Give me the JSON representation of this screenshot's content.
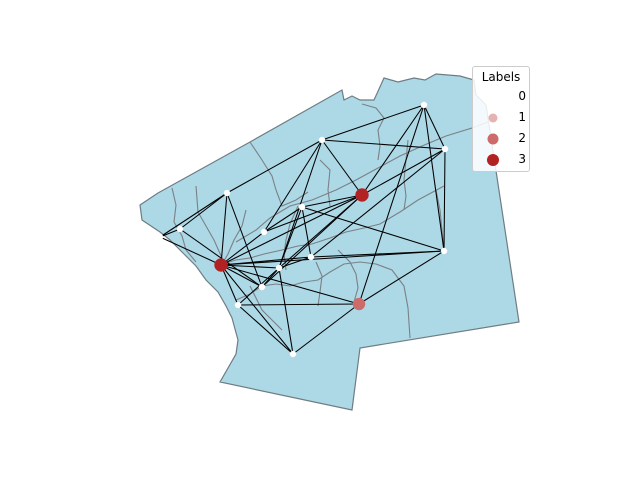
{
  "map": {
    "land_color": "#add8e6",
    "boundary_color": "#7a8186",
    "edge_color": "#000000",
    "node_color": "#ffffff"
  },
  "legend": {
    "title": "Labels",
    "items": [
      {
        "label": "0",
        "color": "#ffffff"
      },
      {
        "label": "1",
        "color": "#e6b3b3"
      },
      {
        "label": "2",
        "color": "#cd6b6b"
      },
      {
        "label": "3",
        "color": "#b22222"
      }
    ]
  },
  "graph": {
    "nodes": [
      {
        "id": "n1",
        "label": 0
      },
      {
        "id": "n2",
        "label": 0
      },
      {
        "id": "n3",
        "label": 0
      },
      {
        "id": "n4",
        "label": 0
      },
      {
        "id": "n5",
        "label": 0
      },
      {
        "id": "n6",
        "label": 0
      },
      {
        "id": "n7",
        "label": 0
      },
      {
        "id": "n8",
        "label": 0
      },
      {
        "id": "n9",
        "label": 0
      },
      {
        "id": "n10",
        "label": 0
      },
      {
        "id": "n11",
        "label": 0
      },
      {
        "id": "n12",
        "label": 0
      },
      {
        "id": "n13",
        "label": 0
      },
      {
        "id": "n14",
        "label": 2
      },
      {
        "id": "n15",
        "label": 3
      },
      {
        "id": "n16",
        "label": 3
      }
    ],
    "edges": [
      [
        "n1",
        "n2"
      ],
      [
        "n1",
        "n3"
      ],
      [
        "n1",
        "n16"
      ],
      [
        "n2",
        "n3"
      ],
      [
        "n2",
        "n12"
      ],
      [
        "n3",
        "n4"
      ],
      [
        "n3",
        "n16"
      ],
      [
        "n3",
        "n12"
      ],
      [
        "n4",
        "n5"
      ],
      [
        "n4",
        "n15"
      ],
      [
        "n4",
        "n6"
      ],
      [
        "n4",
        "n8"
      ],
      [
        "n4",
        "n11"
      ],
      [
        "n5",
        "n6"
      ],
      [
        "n5",
        "n15"
      ],
      [
        "n5",
        "n14"
      ],
      [
        "n5",
        "n9"
      ],
      [
        "n6",
        "n15"
      ],
      [
        "n6",
        "n9"
      ],
      [
        "n6",
        "n10"
      ],
      [
        "n7",
        "n8"
      ],
      [
        "n7",
        "n9"
      ],
      [
        "n7",
        "n10"
      ],
      [
        "n7",
        "n11"
      ],
      [
        "n7",
        "n15"
      ],
      [
        "n8",
        "n15"
      ],
      [
        "n8",
        "n16"
      ],
      [
        "n9",
        "n10"
      ],
      [
        "n9",
        "n14"
      ],
      [
        "n9",
        "n16"
      ],
      [
        "n10",
        "n16"
      ],
      [
        "n10",
        "n11"
      ],
      [
        "n11",
        "n15"
      ],
      [
        "n11",
        "n16"
      ],
      [
        "n11",
        "n12"
      ],
      [
        "n11",
        "n13"
      ],
      [
        "n12",
        "n15"
      ],
      [
        "n12",
        "n16"
      ],
      [
        "n13",
        "n14"
      ],
      [
        "n13",
        "n16"
      ],
      [
        "n14",
        "n16"
      ],
      [
        "n15",
        "n16"
      ]
    ]
  }
}
